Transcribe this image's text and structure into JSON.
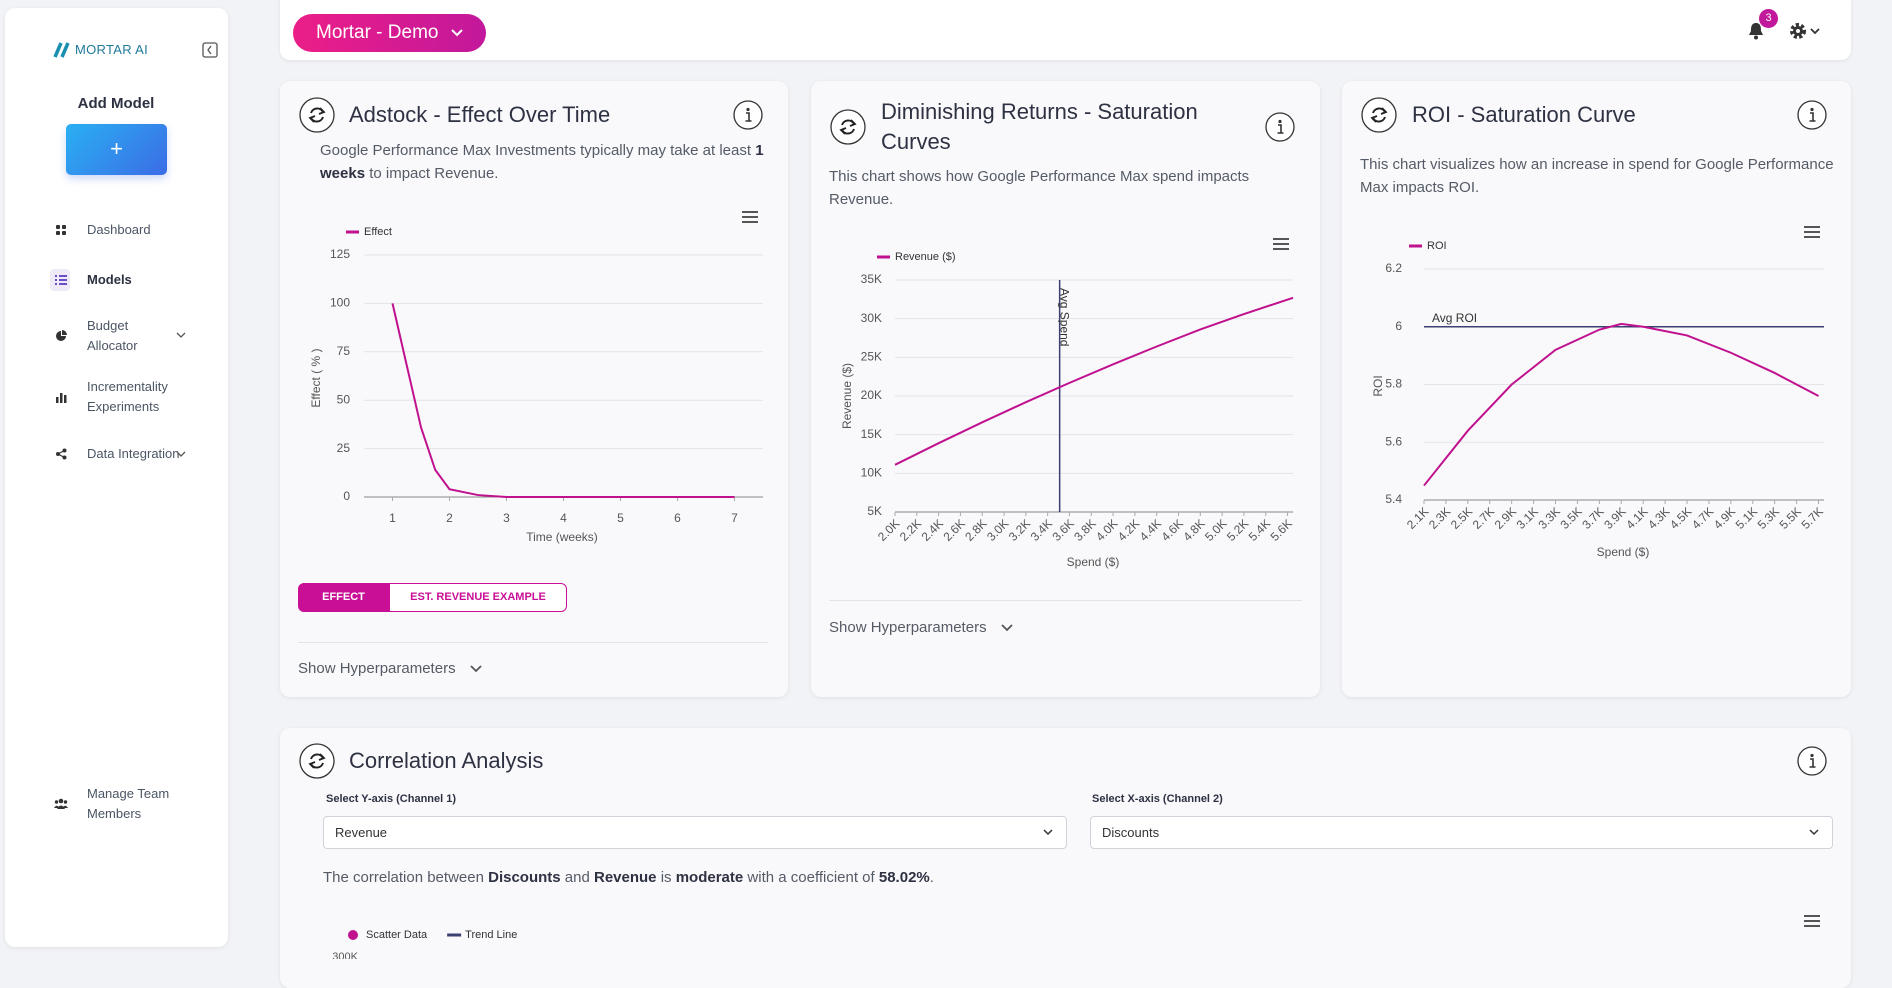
{
  "sidebar": {
    "logo": "MORTAR AI",
    "add_model": "Add Model",
    "add_button": "+",
    "nav": [
      {
        "label": "Dashboard"
      },
      {
        "label": "Models"
      },
      {
        "label": "Budget Allocator"
      },
      {
        "label": "Incrementality Experiments"
      },
      {
        "label": "Data Integration"
      }
    ],
    "footer": "Manage Team Members"
  },
  "header": {
    "workspace": "Mortar - Demo",
    "notifications": 3
  },
  "cards": [
    {
      "title": "Adstock - Effect Over Time",
      "description": [
        "Google Performance Max Investments typically may take at least ",
        "1 weeks",
        " to impact Revenue."
      ],
      "chart": {
        "type": "line",
        "x": [
          1,
          1.25,
          1.5,
          1.75,
          2,
          2.5,
          3,
          4,
          5,
          6,
          7
        ],
        "series": [
          {
            "name": "Effect",
            "color": "#c0118f",
            "values": [
              100,
              68,
              36,
              14,
              4,
              1,
              0,
              0,
              0,
              0,
              0
            ]
          }
        ],
        "xlim": [
          0.5,
          7.5
        ],
        "xticks": [
          1,
          2,
          3,
          4,
          5,
          6,
          7
        ],
        "ylim": [
          0,
          125
        ],
        "yticks": [
          0,
          25,
          50,
          75,
          100,
          125
        ],
        "x_label": "Time (weeks)",
        "y_label": "Effect ( % )",
        "grid": true
      },
      "toggle": [
        "EFFECT",
        "EST. REVENUE EXAMPLE"
      ],
      "footer": "Show Hyperparameters"
    },
    {
      "title": "Diminishing Returns - Saturation Curves",
      "description": [
        "This chart shows how Google Performance Max spend impacts Revenue."
      ],
      "chart": {
        "type": "line",
        "x": [
          2000,
          2400,
          2800,
          3200,
          3600,
          4000,
          4400,
          4800,
          5200,
          5650
        ],
        "series": [
          {
            "name": "Revenue ($)",
            "color": "#c0118f",
            "values": [
              11100,
              13900,
              16600,
              19200,
              21700,
              24100,
              26400,
              28600,
              30600,
              32700
            ]
          }
        ],
        "xlim": [
          2000,
          5650
        ],
        "xticks": [
          {
            "value": 2000,
            "label": "2.0K"
          },
          {
            "value": 2200,
            "label": "2.2K"
          },
          {
            "value": 2400,
            "label": "2.4K"
          },
          {
            "value": 2600,
            "label": "2.6K"
          },
          {
            "value": 2800,
            "label": "2.8K"
          },
          {
            "value": 3000,
            "label": "3.0K"
          },
          {
            "value": 3200,
            "label": "3.2K"
          },
          {
            "value": 3400,
            "label": "3.4K"
          },
          {
            "value": 3600,
            "label": "3.6K"
          },
          {
            "value": 3800,
            "label": "3.8K"
          },
          {
            "value": 4000,
            "label": "4.0K"
          },
          {
            "value": 4200,
            "label": "4.2K"
          },
          {
            "value": 4400,
            "label": "4.4K"
          },
          {
            "value": 4600,
            "label": "4.6K"
          },
          {
            "value": 4800,
            "label": "4.8K"
          },
          {
            "value": 5000,
            "label": "5.0K"
          },
          {
            "value": 5200,
            "label": "5.2K"
          },
          {
            "value": 5400,
            "label": "5.4K"
          },
          {
            "value": 5600,
            "label": "5.6K"
          }
        ],
        "ylim": [
          5000,
          35000
        ],
        "yticks": [
          {
            "value": 5000,
            "label": "5K"
          },
          {
            "value": 10000,
            "label": "10K"
          },
          {
            "value": 15000,
            "label": "15K"
          },
          {
            "value": 20000,
            "label": "20K"
          },
          {
            "value": 25000,
            "label": "25K"
          },
          {
            "value": 30000,
            "label": "30K"
          },
          {
            "value": 35000,
            "label": "35K"
          }
        ],
        "x_label": "Spend ($)",
        "y_label": "Revenue ($)",
        "grid": true,
        "annotations": [
          {
            "label": "Avg Spend",
            "x": 3510,
            "color": "#3b3f72"
          }
        ]
      },
      "footer": "Show Hyperparameters"
    },
    {
      "title": "ROI - Saturation Curve",
      "description": [
        "This chart visualizes how an increase in spend for Google Performance Max impacts ROI."
      ],
      "chart": {
        "type": "line",
        "x": [
          2100,
          2500,
          2900,
          3300,
          3700,
          3900,
          4100,
          4500,
          4900,
          5300,
          5700
        ],
        "series": [
          {
            "name": "ROI",
            "color": "#c0118f",
            "values": [
              5.45,
              5.64,
              5.8,
              5.92,
              5.99,
              6.01,
              6.0,
              5.97,
              5.91,
              5.84,
              5.76
            ]
          }
        ],
        "xlim": [
          2100,
          5750
        ],
        "xticks": [
          {
            "value": 2100,
            "label": "2.1K"
          },
          {
            "value": 2300,
            "label": "2.3K"
          },
          {
            "value": 2500,
            "label": "2.5K"
          },
          {
            "value": 2700,
            "label": "2.7K"
          },
          {
            "value": 2900,
            "label": "2.9K"
          },
          {
            "value": 3100,
            "label": "3.1K"
          },
          {
            "value": 3300,
            "label": "3.3K"
          },
          {
            "value": 3500,
            "label": "3.5K"
          },
          {
            "value": 3700,
            "label": "3.7K"
          },
          {
            "value": 3900,
            "label": "3.9K"
          },
          {
            "value": 4100,
            "label": "4.1K"
          },
          {
            "value": 4300,
            "label": "4.3K"
          },
          {
            "value": 4500,
            "label": "4.5K"
          },
          {
            "value": 4700,
            "label": "4.7K"
          },
          {
            "value": 4900,
            "label": "4.9K"
          },
          {
            "value": 5100,
            "label": "5.1K"
          },
          {
            "value": 5300,
            "label": "5.3K"
          },
          {
            "value": 5500,
            "label": "5.5K"
          },
          {
            "value": 5700,
            "label": "5.7K"
          }
        ],
        "ylim": [
          5.4,
          6.2
        ],
        "yticks": [
          5.4,
          5.6,
          5.8,
          6,
          6.2
        ],
        "x_label": "Spend ($)",
        "y_label": "ROI",
        "grid": true,
        "annotations": [
          {
            "label": "Avg ROI",
            "y": 6,
            "color": "#3b3f72"
          }
        ]
      }
    }
  ],
  "correlation": {
    "title": "Correlation Analysis",
    "y_select_label": "Select Y-axis (Channel 1)",
    "y_select_value": "Revenue",
    "x_select_label": "Select X-axis (Channel 2)",
    "x_select_value": "Discounts",
    "sentence": [
      "The correlation between ",
      "Discounts",
      " and ",
      "Revenue",
      " is ",
      "moderate",
      " with a coefficient of ",
      "58.02%",
      "."
    ],
    "chart": {
      "type": "scatter",
      "series": [
        {
          "name": "Scatter Data",
          "color": "#c0118f"
        },
        {
          "name": "Trend Line",
          "color": "#3b3f72"
        }
      ],
      "yticks": [
        {
          "value": 300000,
          "label": "300K"
        }
      ]
    }
  }
}
